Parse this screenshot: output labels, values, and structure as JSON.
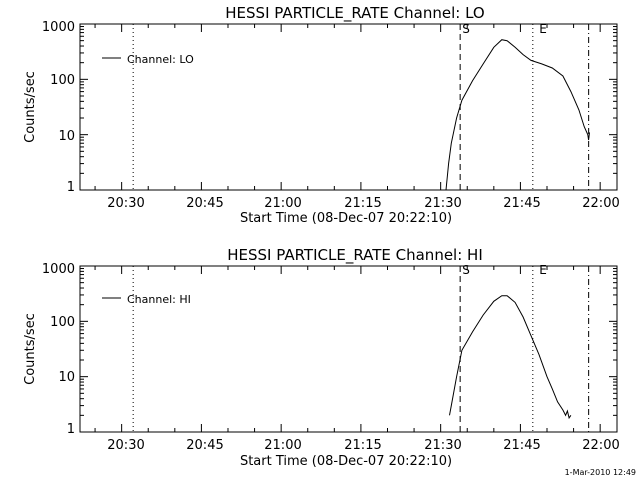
{
  "footer": {
    "timestamp": "1-Mar-2010 12:49"
  },
  "chart_data": [
    {
      "type": "line",
      "title": "HESSI PARTICLE_RATE Channel: LO",
      "xlabel": "Start Time (08-Dec-07 20:22:10)",
      "ylabel": "Counts/sec",
      "y_scale": "log",
      "ylim": [
        1,
        1000
      ],
      "xlim": [
        "20:22:10",
        "22:03:10"
      ],
      "x_ticks": [
        "20:30",
        "20:45",
        "21:00",
        "21:15",
        "21:30",
        "21:45",
        "22:00"
      ],
      "y_ticks": [
        "1",
        "10",
        "100",
        "1000"
      ],
      "legend": {
        "position": "top-left",
        "label": "Channel: LO"
      },
      "markers": [
        {
          "time": "20:32:10",
          "style": "dotted",
          "label": ""
        },
        {
          "time": "21:33:40",
          "style": "dashed",
          "label": "S"
        },
        {
          "time": "21:47:20",
          "style": "dotted",
          "label": "E"
        },
        {
          "time": "21:57:50",
          "style": "dash-dot",
          "label": ""
        }
      ],
      "series": [
        {
          "name": "Channel: LO",
          "points": [
            [
              "21:31:00",
              1
            ],
            [
              "21:31:30",
              3
            ],
            [
              "21:32:00",
              7
            ],
            [
              "21:33:00",
              20
            ],
            [
              "21:34:00",
              42
            ],
            [
              "21:36:00",
              95
            ],
            [
              "21:38:00",
              190
            ],
            [
              "21:40:00",
              380
            ],
            [
              "21:41:30",
              520
            ],
            [
              "21:42:30",
              500
            ],
            [
              "21:44:00",
              380
            ],
            [
              "21:45:30",
              280
            ],
            [
              "21:47:00",
              220
            ],
            [
              "21:49:00",
              190
            ],
            [
              "21:51:00",
              160
            ],
            [
              "21:53:00",
              115
            ],
            [
              "21:54:30",
              60
            ],
            [
              "21:56:00",
              28
            ],
            [
              "21:57:00",
              14
            ],
            [
              "21:57:40",
              10
            ],
            [
              "21:57:50",
              8
            ],
            [
              "21:58:00",
              11
            ]
          ]
        }
      ]
    },
    {
      "type": "line",
      "title": "HESSI PARTICLE_RATE Channel: HI",
      "xlabel": "Start Time (08-Dec-07 20:22:10)",
      "ylabel": "Counts/sec",
      "y_scale": "log",
      "ylim": [
        1,
        1000
      ],
      "xlim": [
        "20:22:10",
        "22:03:10"
      ],
      "x_ticks": [
        "20:30",
        "20:45",
        "21:00",
        "21:15",
        "21:30",
        "21:45",
        "22:00"
      ],
      "y_ticks": [
        "1",
        "10",
        "100",
        "1000"
      ],
      "legend": {
        "position": "top-left",
        "label": "Channel: HI"
      },
      "markers": [
        {
          "time": "20:32:10",
          "style": "dotted",
          "label": ""
        },
        {
          "time": "21:33:40",
          "style": "dashed",
          "label": "S"
        },
        {
          "time": "21:47:20",
          "style": "dotted",
          "label": "E"
        },
        {
          "time": "21:57:50",
          "style": "dash-dot",
          "label": ""
        }
      ],
      "series": [
        {
          "name": "Channel: HI",
          "points": [
            [
              "21:31:40",
              2
            ],
            [
              "21:32:00",
              3
            ],
            [
              "21:33:00",
              10
            ],
            [
              "21:34:00",
              30
            ],
            [
              "21:36:00",
              65
            ],
            [
              "21:38:00",
              130
            ],
            [
              "21:40:00",
              230
            ],
            [
              "21:41:30",
              290
            ],
            [
              "21:42:30",
              290
            ],
            [
              "21:44:00",
              220
            ],
            [
              "21:45:30",
              120
            ],
            [
              "21:47:00",
              55
            ],
            [
              "21:48:30",
              25
            ],
            [
              "21:50:00",
              10
            ],
            [
              "21:51:00",
              6
            ],
            [
              "21:52:00",
              3.5
            ],
            [
              "21:53:00",
              2.5
            ],
            [
              "21:53:30",
              2
            ],
            [
              "21:53:50",
              2.4
            ],
            [
              "21:54:10",
              1.8
            ],
            [
              "21:54:30",
              2
            ]
          ]
        }
      ]
    }
  ]
}
